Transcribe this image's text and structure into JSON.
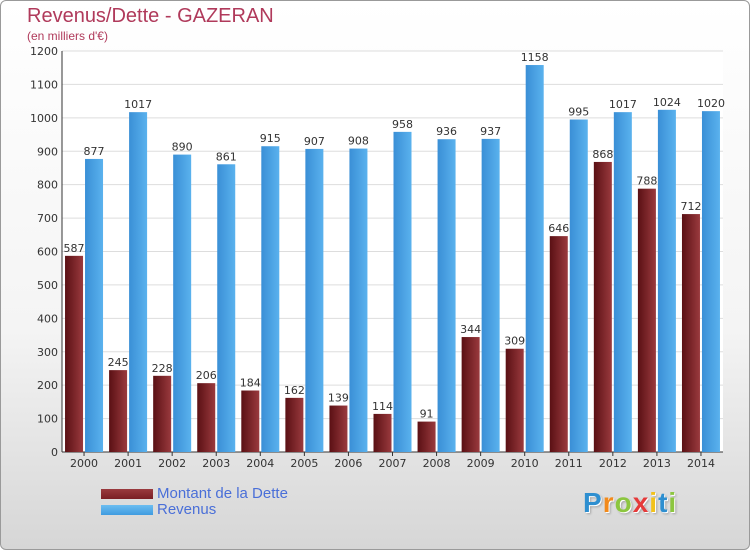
{
  "chart_data": {
    "type": "bar",
    "title": "Revenus/Dette - GAZERAN",
    "subtitle": "(en milliers d'€)",
    "categories": [
      "2000",
      "2001",
      "2002",
      "2003",
      "2004",
      "2005",
      "2006",
      "2007",
      "2008",
      "2009",
      "2010",
      "2011",
      "2012",
      "2013",
      "2014"
    ],
    "series": [
      {
        "name": "Montant de la Dette",
        "color": "#7a1f24",
        "values": [
          587,
          245,
          228,
          206,
          184,
          162,
          139,
          114,
          91,
          344,
          309,
          646,
          868,
          788,
          712
        ]
      },
      {
        "name": "Revenus",
        "color": "#3f9be0",
        "values": [
          877,
          1017,
          890,
          861,
          915,
          907,
          908,
          958,
          936,
          937,
          1158,
          995,
          1017,
          1024,
          1020
        ]
      }
    ],
    "ylim": [
      0,
      1200
    ],
    "yticks": [
      0,
      100,
      200,
      300,
      400,
      500,
      600,
      700,
      800,
      900,
      1000,
      1100,
      1200
    ],
    "grid": true,
    "legend_position": "bottom-left"
  },
  "logo": {
    "letters": [
      "P",
      "r",
      "o",
      "x",
      "i",
      "t",
      "i"
    ],
    "colors": [
      "#2e8fd0",
      "#f28a1b",
      "#8cc63f",
      "#e53a3a",
      "#f2c21b",
      "#2e8fd0",
      "#8cc63f"
    ]
  }
}
